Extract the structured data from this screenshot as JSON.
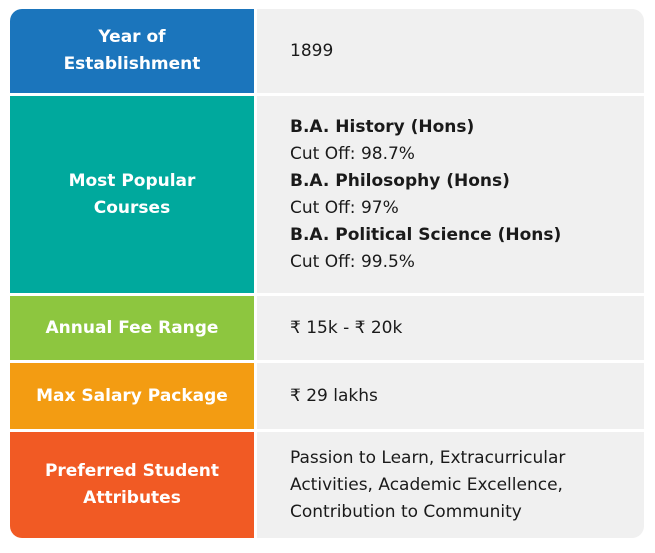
{
  "colors": {
    "year_label_bg": "#1b75bc",
    "courses_label_bg": "#00a99d",
    "fee_label_bg": "#8dc63f",
    "salary_label_bg": "#f39c12",
    "attributes_label_bg": "#f15a24",
    "value_bg": "#f0f0f0"
  },
  "rows": {
    "year": {
      "label": "Year of Establishment",
      "value": "1899"
    },
    "courses": {
      "label": "Most Popular Courses",
      "items": [
        {
          "name": "B.A. History (Hons)",
          "cutoff": "Cut Off: 98.7%"
        },
        {
          "name": "B.A. Philosophy (Hons)",
          "cutoff": "Cut Off: 97%"
        },
        {
          "name": "B.A. Political Science (Hons)",
          "cutoff": "Cut Off: 99.5%"
        }
      ]
    },
    "fee": {
      "label": "Annual Fee Range",
      "value": "₹ 15k - ₹ 20k"
    },
    "salary": {
      "label": "Max Salary Package",
      "value": "₹ 29 lakhs"
    },
    "attributes": {
      "label": "Preferred Student Attributes",
      "value": "Passion to Learn, Extracurricular Activities, Academic Excellence, Contribution to Community"
    }
  }
}
